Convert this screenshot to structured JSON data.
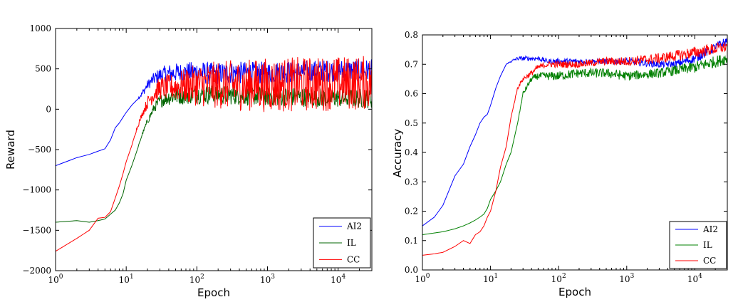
{
  "chart_data": [
    {
      "type": "line",
      "xlabel": "Epoch",
      "ylabel": "Reward",
      "xscale": "log",
      "xlim": [
        1,
        30000
      ],
      "ylim": [
        -2000,
        1000
      ],
      "yticks": [
        -2000,
        -1500,
        -1000,
        -500,
        0,
        500,
        1000
      ],
      "ytick_labels": [
        "−2000",
        "−1500",
        "−1000",
        "−500",
        "0",
        "500",
        "1000"
      ],
      "xticks": [
        1,
        10,
        100,
        1000,
        10000
      ],
      "xtick_bases": [
        "10",
        "10",
        "10",
        "10",
        "10"
      ],
      "xtick_exps": [
        "0",
        "1",
        "2",
        "3",
        "4"
      ],
      "legend_position": "lower-right",
      "grid": false,
      "series": [
        {
          "name": "AI2",
          "color": "#0000ff",
          "x": [
            1,
            2,
            3,
            4,
            5,
            6,
            7,
            8,
            9,
            10,
            12,
            14,
            17,
            20,
            25,
            30,
            40,
            50,
            70,
            100,
            150,
            200,
            300,
            500,
            1000,
            2000,
            5000,
            10000,
            30000
          ],
          "y": [
            -700,
            -600,
            -560,
            -520,
            -490,
            -380,
            -230,
            -170,
            -100,
            -40,
            50,
            110,
            200,
            300,
            380,
            420,
            440,
            450,
            460,
            460,
            440,
            440,
            450,
            450,
            450,
            460,
            470,
            480,
            480
          ],
          "noise": [
            0,
            0,
            0,
            0,
            0,
            0,
            0,
            0,
            0,
            0,
            0,
            0,
            20,
            30,
            40,
            50,
            60,
            60,
            60,
            70,
            70,
            70,
            70,
            70,
            70,
            70,
            70,
            70,
            70
          ]
        },
        {
          "name": "IL",
          "color": "#006400",
          "x": [
            1,
            2,
            3,
            4,
            5,
            6,
            7,
            8,
            9,
            10,
            12,
            14,
            17,
            20,
            25,
            30,
            40,
            50,
            70,
            100,
            200,
            500,
            1000,
            3000,
            10000,
            30000
          ],
          "y": [
            -1400,
            -1380,
            -1400,
            -1380,
            -1360,
            -1300,
            -1250,
            -1160,
            -1050,
            -880,
            -700,
            -530,
            -300,
            -150,
            20,
            100,
            150,
            170,
            180,
            185,
            180,
            170,
            160,
            150,
            140,
            130
          ],
          "noise": [
            0,
            0,
            0,
            0,
            0,
            0,
            0,
            0,
            0,
            0,
            0,
            0,
            10,
            20,
            30,
            40,
            50,
            60,
            60,
            60,
            60,
            60,
            60,
            60,
            60,
            60
          ]
        },
        {
          "name": "CC",
          "color": "#ff0000",
          "x": [
            1,
            2,
            3,
            4,
            5,
            6,
            7,
            8,
            9,
            10,
            12,
            14,
            17,
            20,
            25,
            30,
            40,
            50,
            70,
            100,
            200,
            500,
            1000,
            3000,
            10000,
            30000
          ],
          "y": [
            -1760,
            -1600,
            -1500,
            -1350,
            -1340,
            -1270,
            -1100,
            -950,
            -800,
            -650,
            -450,
            -250,
            -50,
            80,
            200,
            260,
            270,
            280,
            290,
            300,
            300,
            300,
            300,
            310,
            320,
            330
          ],
          "noise": [
            0,
            0,
            0,
            0,
            0,
            0,
            0,
            0,
            0,
            0,
            0,
            10,
            20,
            40,
            60,
            70,
            80,
            90,
            110,
            130,
            150,
            160,
            170,
            170,
            170,
            170
          ]
        }
      ]
    },
    {
      "type": "line",
      "xlabel": "Epoch",
      "ylabel": "Accuracy",
      "xscale": "log",
      "xlim": [
        1,
        30000
      ],
      "ylim": [
        0,
        0.8
      ],
      "yticks": [
        0,
        0.1,
        0.2,
        0.3,
        0.4,
        0.5,
        0.6,
        0.7,
        0.8
      ],
      "ytick_labels": [
        "0.0",
        "0.1",
        "0.2",
        "0.3",
        "0.4",
        "0.5",
        "0.6",
        "0.7",
        "0.8"
      ],
      "xticks": [
        1,
        10,
        100,
        1000,
        10000
      ],
      "xtick_bases": [
        "10",
        "10",
        "10",
        "10",
        "10"
      ],
      "xtick_exps": [
        "0",
        "1",
        "2",
        "3",
        "4"
      ],
      "legend_position": "lower-right",
      "grid": false,
      "series": [
        {
          "name": "AI2",
          "color": "#0000ff",
          "x": [
            1,
            1.5,
            2,
            3,
            4,
            5,
            6,
            7,
            8,
            9,
            10,
            12,
            14,
            17,
            20,
            25,
            30,
            40,
            50,
            70,
            100,
            200,
            500,
            1000,
            3000,
            5000,
            10000,
            30000
          ],
          "y": [
            0.15,
            0.18,
            0.22,
            0.32,
            0.36,
            0.42,
            0.46,
            0.5,
            0.52,
            0.53,
            0.56,
            0.62,
            0.66,
            0.7,
            0.71,
            0.72,
            0.72,
            0.72,
            0.72,
            0.71,
            0.71,
            0.71,
            0.71,
            0.71,
            0.7,
            0.7,
            0.72,
            0.78
          ],
          "noise": [
            0,
            0,
            0,
            0,
            0,
            0,
            0,
            0,
            0,
            0,
            0,
            0,
            0,
            0,
            0.002,
            0.003,
            0.004,
            0.004,
            0.004,
            0.004,
            0.005,
            0.005,
            0.005,
            0.006,
            0.006,
            0.006,
            0.008,
            0.008
          ]
        },
        {
          "name": "IL",
          "color": "#008000",
          "x": [
            1,
            2,
            3,
            4,
            5,
            6,
            7,
            8,
            9,
            10,
            12,
            14,
            17,
            20,
            25,
            30,
            40,
            50,
            70,
            100,
            200,
            500,
            1000,
            3000,
            10000,
            30000
          ],
          "y": [
            0.12,
            0.13,
            0.14,
            0.15,
            0.16,
            0.17,
            0.18,
            0.19,
            0.21,
            0.24,
            0.27,
            0.3,
            0.36,
            0.4,
            0.5,
            0.6,
            0.65,
            0.66,
            0.66,
            0.66,
            0.67,
            0.67,
            0.66,
            0.67,
            0.69,
            0.72
          ],
          "noise": [
            0,
            0,
            0,
            0,
            0,
            0,
            0,
            0,
            0,
            0,
            0,
            0,
            0,
            0,
            0,
            0.004,
            0.005,
            0.006,
            0.007,
            0.008,
            0.008,
            0.008,
            0.008,
            0.008,
            0.01,
            0.01
          ]
        },
        {
          "name": "CC",
          "color": "#ff0000",
          "x": [
            1,
            1.5,
            2,
            3,
            4,
            5,
            6,
            7,
            8,
            9,
            10,
            12,
            14,
            17,
            20,
            25,
            30,
            40,
            50,
            70,
            100,
            200,
            500,
            1000,
            3000,
            10000,
            30000
          ],
          "y": [
            0.05,
            0.055,
            0.06,
            0.08,
            0.1,
            0.09,
            0.12,
            0.13,
            0.15,
            0.18,
            0.2,
            0.27,
            0.35,
            0.42,
            0.52,
            0.62,
            0.65,
            0.67,
            0.69,
            0.7,
            0.7,
            0.7,
            0.71,
            0.71,
            0.72,
            0.74,
            0.76
          ],
          "noise": [
            0,
            0,
            0,
            0,
            0,
            0,
            0,
            0,
            0,
            0,
            0,
            0,
            0,
            0,
            0,
            0.003,
            0.004,
            0.005,
            0.005,
            0.005,
            0.006,
            0.006,
            0.007,
            0.008,
            0.009,
            0.01,
            0.01
          ]
        }
      ]
    }
  ]
}
